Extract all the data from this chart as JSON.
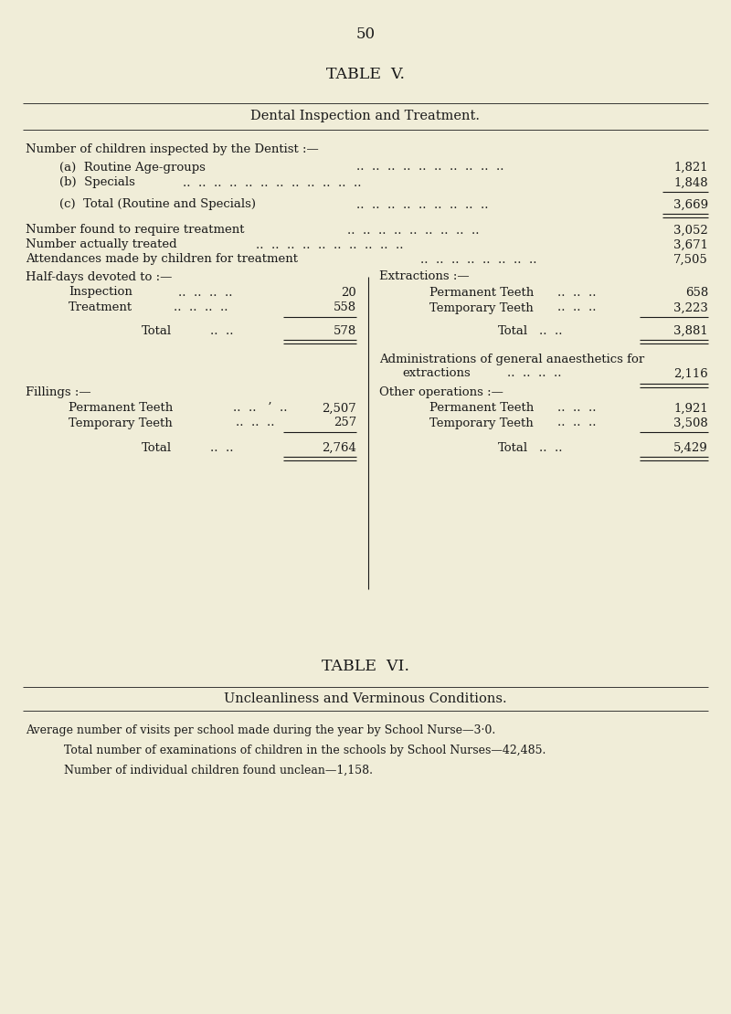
{
  "bg_color": "#f0edd8",
  "text_color": "#1a1a1a",
  "page_number": "50",
  "table5_title": "TABLE  V.",
  "table5_subtitle": "Dental Inspection and Treatment.",
  "table6_title": "TABLE  VI.",
  "table6_subtitle": "Uncleanliness and Verminous Conditions.",
  "body_fontsize": 9.5,
  "small_fontsize": 9.0,
  "title_fontsize": 12.5,
  "subtitle_fontsize": 10.5,
  "pagenum_fontsize": 12
}
